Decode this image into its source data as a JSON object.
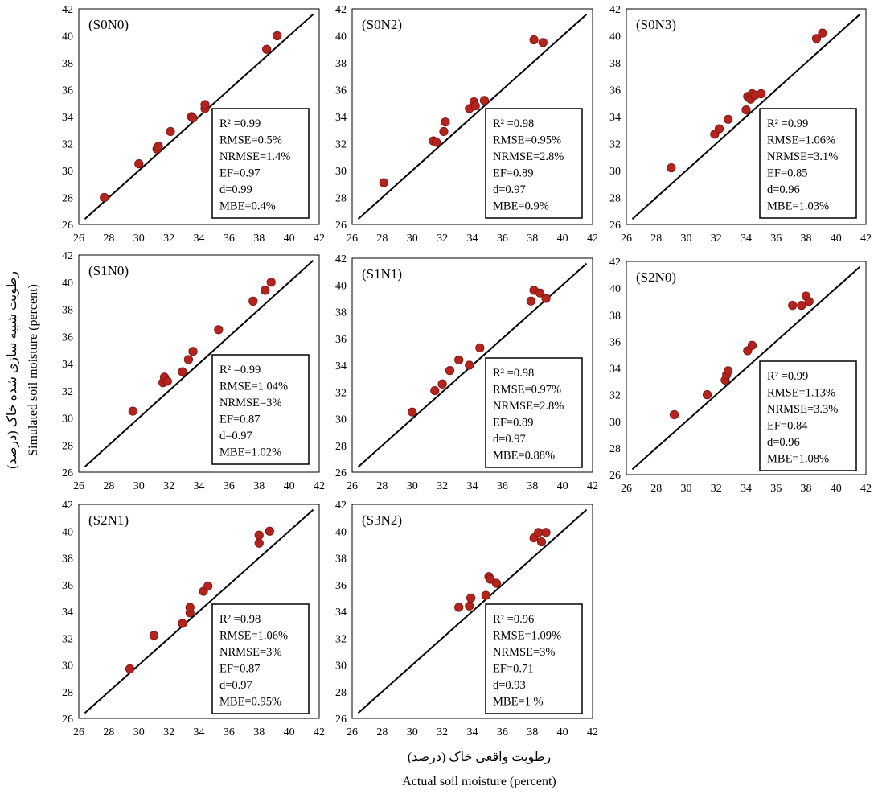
{
  "figure": {
    "x_title_fa": "رطوبت واقعی خاک (درصد)",
    "x_title_en": "Actual soil moisture (percent)",
    "y_title_fa": "رطوبت شبیه سازی شده خاک (درصد)",
    "y_title_en": "Simulated soil moisture (percent)",
    "colors": {
      "point": "#b5231d",
      "line": "#000000",
      "frame": "#000000"
    }
  },
  "chart_data": [
    {
      "type": "scatter",
      "title": "(S0N0)",
      "xlim": [
        26,
        42
      ],
      "ylim": [
        26,
        42
      ],
      "xticks": [
        26,
        28,
        30,
        32,
        34,
        36,
        38,
        40,
        42
      ],
      "yticks": [
        26,
        28,
        30,
        32,
        34,
        36,
        38,
        40,
        42
      ],
      "reference_line": "1:1",
      "points": [
        [
          27.7,
          28.0
        ],
        [
          30.0,
          30.5
        ],
        [
          31.2,
          31.6
        ],
        [
          31.3,
          31.8
        ],
        [
          32.1,
          32.9
        ],
        [
          33.5,
          34.0
        ],
        [
          33.6,
          33.9
        ],
        [
          34.4,
          34.6
        ],
        [
          34.4,
          34.9
        ],
        [
          38.5,
          39.0
        ],
        [
          39.2,
          40.0
        ]
      ],
      "stats": [
        "R² =0.99",
        "RMSE=0.5%",
        "NRMSE=1.4%",
        "EF=0.97",
        "d=0.99",
        "MBE=0.4%"
      ]
    },
    {
      "type": "scatter",
      "title": "(S0N2)",
      "xlim": [
        26,
        42
      ],
      "ylim": [
        26,
        42
      ],
      "xticks": [
        26,
        28,
        30,
        32,
        34,
        36,
        38,
        40,
        42
      ],
      "yticks": [
        26,
        28,
        30,
        32,
        34,
        36,
        38,
        40,
        42
      ],
      "reference_line": "1:1",
      "points": [
        [
          28.1,
          29.1
        ],
        [
          31.4,
          32.2
        ],
        [
          31.6,
          32.1
        ],
        [
          32.1,
          32.9
        ],
        [
          32.2,
          33.6
        ],
        [
          33.8,
          34.6
        ],
        [
          34.1,
          35.1
        ],
        [
          34.2,
          34.8
        ],
        [
          34.8,
          35.2
        ],
        [
          38.1,
          39.7
        ],
        [
          38.7,
          39.5
        ]
      ],
      "stats": [
        "R² =0.98",
        "RMSE=0.95%",
        "NRMSE=2.8%",
        "EF=0.89",
        "d=0.97",
        "MBE=0.9%"
      ]
    },
    {
      "type": "scatter",
      "title": "(S0N3)",
      "xlim": [
        26,
        42
      ],
      "ylim": [
        26,
        42
      ],
      "xticks": [
        26,
        28,
        30,
        32,
        34,
        36,
        38,
        40,
        42
      ],
      "yticks": [
        26,
        28,
        30,
        32,
        34,
        36,
        38,
        40,
        42
      ],
      "reference_line": "1:1",
      "points": [
        [
          29.0,
          30.2
        ],
        [
          31.9,
          32.7
        ],
        [
          32.2,
          33.1
        ],
        [
          32.8,
          33.8
        ],
        [
          34.0,
          34.5
        ],
        [
          34.1,
          35.5
        ],
        [
          34.3,
          35.3
        ],
        [
          34.4,
          35.7
        ],
        [
          34.6,
          35.6
        ],
        [
          35.0,
          35.7
        ],
        [
          38.7,
          39.8
        ],
        [
          39.1,
          40.2
        ]
      ],
      "stats": [
        "R² =0.99",
        "RMSE=1.06%",
        "NRMSE=3.1%",
        "EF=0.85",
        "d=0.96",
        "MBE=1.03%"
      ]
    },
    {
      "type": "scatter",
      "title": "(S1N0)",
      "xlim": [
        26,
        42
      ],
      "ylim": [
        26,
        42
      ],
      "xticks": [
        26,
        28,
        30,
        32,
        34,
        36,
        38,
        40,
        42
      ],
      "yticks": [
        26,
        28,
        30,
        32,
        34,
        36,
        38,
        40,
        42
      ],
      "reference_line": "1:1",
      "points": [
        [
          29.6,
          30.5
        ],
        [
          31.6,
          32.6
        ],
        [
          31.7,
          33.0
        ],
        [
          31.9,
          32.7
        ],
        [
          32.9,
          33.4
        ],
        [
          33.3,
          34.3
        ],
        [
          33.6,
          34.9
        ],
        [
          35.3,
          36.5
        ],
        [
          37.6,
          38.6
        ],
        [
          38.4,
          39.4
        ],
        [
          38.8,
          40.0
        ]
      ],
      "stats": [
        "R² =0.99",
        "RMSE=1.04%",
        "NRMSE=3%",
        "EF=0.87",
        "d=0.97",
        "MBE=1.02%"
      ]
    },
    {
      "type": "scatter",
      "title": "(S1N1)",
      "xlim": [
        26,
        42
      ],
      "ylim": [
        26,
        42
      ],
      "xticks": [
        26,
        28,
        30,
        32,
        34,
        36,
        38,
        40,
        42
      ],
      "yticks": [
        26,
        28,
        30,
        32,
        34,
        36,
        38,
        40,
        42
      ],
      "reference_line": "1:1",
      "points": [
        [
          30.0,
          30.5
        ],
        [
          31.5,
          32.1
        ],
        [
          32.0,
          32.6
        ],
        [
          32.5,
          33.6
        ],
        [
          33.1,
          34.4
        ],
        [
          33.8,
          34.0
        ],
        [
          34.5,
          35.3
        ],
        [
          37.9,
          38.8
        ],
        [
          38.1,
          39.6
        ],
        [
          38.5,
          39.4
        ],
        [
          38.9,
          39.0
        ]
      ],
      "stats": [
        "R² =0.98",
        "RMSE=0.97%",
        "NRMSE=2.8%",
        "EF=0.89",
        "d=0.97",
        "MBE=0.88%"
      ]
    },
    {
      "type": "scatter",
      "title": "(S2N0)",
      "xlim": [
        26,
        42
      ],
      "ylim": [
        26,
        42
      ],
      "xticks": [
        26,
        28,
        30,
        32,
        34,
        36,
        38,
        40,
        42
      ],
      "yticks": [
        26,
        28,
        30,
        32,
        34,
        36,
        38,
        40,
        42
      ],
      "reference_line": "1:1",
      "points": [
        [
          29.2,
          30.5
        ],
        [
          31.4,
          32.0
        ],
        [
          32.6,
          33.1
        ],
        [
          32.7,
          33.5
        ],
        [
          32.8,
          33.8
        ],
        [
          34.1,
          35.3
        ],
        [
          34.4,
          35.7
        ],
        [
          37.1,
          38.7
        ],
        [
          37.7,
          38.7
        ],
        [
          38.0,
          39.4
        ],
        [
          38.2,
          39.0
        ]
      ],
      "stats": [
        "R² =0.99",
        "RMSE=1.13%",
        "NRMSE=3.3%",
        "EF=0.84",
        "d=0.96",
        "MBE=1.08%"
      ]
    },
    {
      "type": "scatter",
      "title": "(S2N1)",
      "xlim": [
        26,
        42
      ],
      "ylim": [
        26,
        42
      ],
      "xticks": [
        26,
        28,
        30,
        32,
        34,
        36,
        38,
        40,
        42
      ],
      "yticks": [
        26,
        28,
        30,
        32,
        34,
        36,
        38,
        40,
        42
      ],
      "reference_line": "1:1",
      "points": [
        [
          29.4,
          29.7
        ],
        [
          31.0,
          32.2
        ],
        [
          32.9,
          33.1
        ],
        [
          33.4,
          33.9
        ],
        [
          33.4,
          34.3
        ],
        [
          34.3,
          35.5
        ],
        [
          34.6,
          35.9
        ],
        [
          38.0,
          39.1
        ],
        [
          38.0,
          39.7
        ],
        [
          38.7,
          40.0
        ]
      ],
      "stats": [
        "R² =0.98",
        "RMSE=1.06%",
        "NRMSE=3%",
        "EF=0.87",
        "d=0.97",
        "MBE=0.95%"
      ]
    },
    {
      "type": "scatter",
      "title": "(S3N2)",
      "xlim": [
        26,
        42
      ],
      "ylim": [
        26,
        42
      ],
      "xticks": [
        26,
        28,
        30,
        32,
        34,
        36,
        38,
        40,
        42
      ],
      "yticks": [
        26,
        28,
        30,
        32,
        34,
        36,
        38,
        40,
        42
      ],
      "reference_line": "1:1",
      "points": [
        [
          33.1,
          34.3
        ],
        [
          33.8,
          34.4
        ],
        [
          33.9,
          35.0
        ],
        [
          34.9,
          35.2
        ],
        [
          35.1,
          36.6
        ],
        [
          35.2,
          36.4
        ],
        [
          35.6,
          36.1
        ],
        [
          38.1,
          39.5
        ],
        [
          38.4,
          39.9
        ],
        [
          38.6,
          39.2
        ],
        [
          38.9,
          39.9
        ]
      ],
      "stats": [
        "R² =0.96",
        "RMSE=1.09%",
        "NRMSE=3%",
        "EF=0.71",
        "d=0.93",
        "MBE=1 %"
      ]
    }
  ]
}
